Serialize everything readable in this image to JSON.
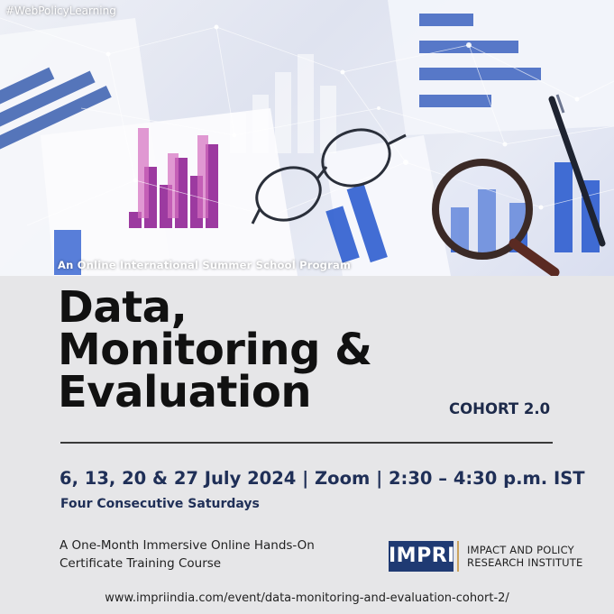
{
  "hashtag": "#WebPolicyLearning",
  "program_label": "An Online International Summer School Program",
  "title_lines": [
    "Data,",
    "Monitoring &",
    "Evaluation"
  ],
  "cohort": "COHORT 2.0",
  "schedule": "6, 13, 20 & 27 July 2024 | Zoom | 2:30 – 4:30 p.m. IST",
  "frequency": "Four Consecutive Saturdays",
  "course_lines": [
    "A One-Month Immersive Online Hands-On",
    "Certificate Training Course"
  ],
  "logo_text": "IMPRI",
  "institute_lines": [
    "IMPACT AND POLICY",
    "RESEARCH INSTITUTE"
  ],
  "url": "www.impriindia.com/event/data-monitoring-and-evaluation-cohort-2/",
  "colors": {
    "navy": "#1f2f57",
    "logo_blue": "#1f3a73",
    "logo_accent": "#c9a25d",
    "background": "#e6e6e8"
  }
}
